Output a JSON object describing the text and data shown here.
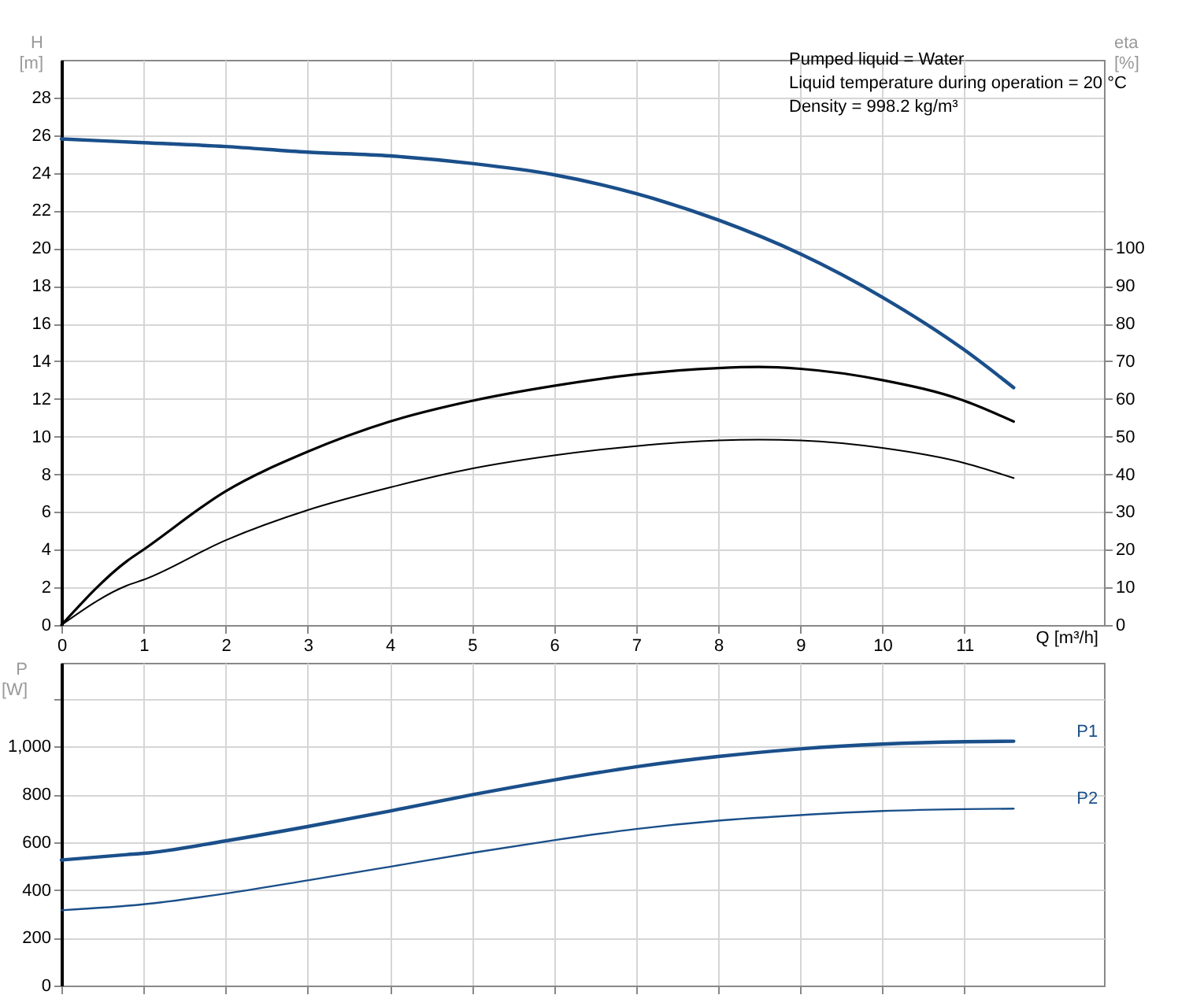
{
  "chart_data": [
    {
      "type": "line",
      "ylabel": "H [m]",
      "y2label": "eta [%]",
      "xlabel": "Q [m³/h]",
      "annotations": [
        "Pumped liquid = Water",
        "Liquid temperature during operation = 20 °C",
        "Density = 998.2 kg/m³"
      ],
      "xlim": [
        0,
        12.7
      ],
      "xticks": [
        0,
        1,
        2,
        3,
        4,
        5,
        6,
        7,
        8,
        9,
        10,
        11
      ],
      "ylim": [
        0,
        30
      ],
      "yticks": [
        0,
        2,
        4,
        6,
        8,
        10,
        12,
        14,
        16,
        18,
        20,
        22,
        24,
        26,
        28
      ],
      "y2lim": [
        0,
        150
      ],
      "y2ticks": [
        0,
        10,
        20,
        30,
        40,
        50,
        60,
        70,
        80,
        90,
        100
      ],
      "grid": true,
      "legend": false,
      "series": [
        {
          "color": "#1a4f8a",
          "x": [
            0,
            1,
            2,
            3,
            4,
            5,
            6,
            7,
            8,
            9,
            10,
            11,
            11.6
          ],
          "values": [
            25.8,
            25.6,
            25.4,
            25.1,
            24.9,
            24.5,
            23.9,
            22.9,
            21.5,
            19.7,
            17.4,
            14.6,
            12.6
          ]
        },
        {
          "color": "#000000",
          "axis": "y2",
          "x": [
            0,
            0.8,
            1,
            2,
            3,
            4,
            5,
            6,
            7,
            8,
            8.5,
            9,
            10,
            11,
            11.6
          ],
          "values": [
            0,
            17,
            20,
            35.5,
            46,
            54,
            59.5,
            63.5,
            66.5,
            68.2,
            68.5,
            68,
            65,
            59.5,
            54
          ]
        },
        {
          "color": "#000000",
          "axis": "y2",
          "x": [
            0,
            0.8,
            1,
            2,
            3,
            4,
            5,
            6,
            7,
            8,
            8.5,
            9,
            10,
            11,
            11.6
          ],
          "values": [
            0,
            10.5,
            12,
            22.5,
            30.5,
            36.5,
            41.5,
            45,
            47.5,
            49,
            49.2,
            49,
            47,
            43,
            39
          ]
        }
      ]
    },
    {
      "type": "line",
      "ylabel": "P [W]",
      "tick_labels": "y",
      "xlim": [
        0,
        12.7
      ],
      "xticks": [
        0,
        1,
        2,
        3,
        4,
        5,
        6,
        7,
        8,
        9,
        10,
        11
      ],
      "ylim": [
        0,
        1350
      ],
      "yticks": [
        0,
        200,
        400,
        600,
        800,
        {
          "value": 1000,
          "label": "1,000"
        },
        {
          "value": 1200,
          "label": null
        }
      ],
      "grid": true,
      "legend": false,
      "series": [
        {
          "name": "P1",
          "color": "#1a4f8a",
          "x": [
            0,
            0.8,
            1,
            2,
            3,
            4,
            5,
            6,
            7,
            8,
            9,
            10,
            11,
            11.6
          ],
          "values": [
            525,
            548,
            553,
            605,
            665,
            730,
            798,
            860,
            915,
            958,
            990,
            1010,
            1020,
            1022
          ]
        },
        {
          "name": "P2",
          "color": "#1a4f8a",
          "x": [
            0,
            1,
            2,
            3,
            4,
            5,
            6,
            7,
            8,
            9,
            10,
            11,
            11.6
          ],
          "values": [
            315,
            340,
            385,
            440,
            497,
            555,
            608,
            655,
            690,
            713,
            730,
            738,
            740
          ]
        }
      ]
    }
  ]
}
